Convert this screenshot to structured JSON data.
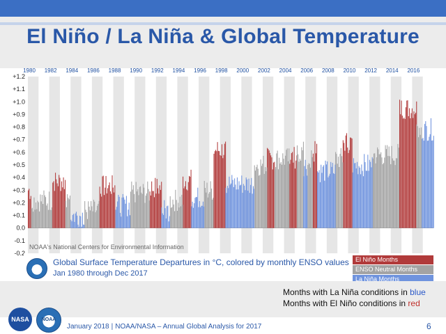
{
  "slide": {
    "title": "El Niño / La Niña & Global Temperature",
    "credit": "NOAA's National Centers for Environmental Information",
    "legend_line1": "Global Surface Temperature Departures in °C, colored by monthly ENSO values",
    "legend_line2": "Jan 1980 through Dec 2017",
    "legend_items": [
      "El Niño Months",
      "ENSO Neutral Months",
      "La Niña Months"
    ],
    "note_line1_prefix": "Months with La Niña conditions in ",
    "note_line1_word": "blue",
    "note_line2_prefix": "Months with El Niño conditions in ",
    "note_line2_word": "red",
    "footer_date": "January 2018",
    "footer_text": "NOAA/NASA – Annual Global Analysis for 2017",
    "page_number": "6",
    "nasa_label": "NASA",
    "noaa_label": "NOAA"
  },
  "chart_data": {
    "type": "bar",
    "title": "El Niño / La Niña & Global Temperature",
    "x_ticks": [
      "1980",
      "1982",
      "1984",
      "1986",
      "1988",
      "1990",
      "1992",
      "1994",
      "1996",
      "1998",
      "2000",
      "2002",
      "2004",
      "2006",
      "2008",
      "2010",
      "2012",
      "2014",
      "2016"
    ],
    "y_ticks": [
      "+1.2",
      "+1.1",
      "+1.0",
      "+0.9",
      "+0.8",
      "+0.7",
      "+0.6",
      "+0.5",
      "+0.4",
      "+0.3",
      "+0.2",
      "+0.1",
      "0.0",
      "-0.1",
      "-0.2"
    ],
    "ylim": [
      -0.2,
      1.2
    ],
    "xlim": [
      1980,
      2018
    ],
    "units": "°C",
    "colors": {
      "el_nino": "#b13a3a",
      "neutral": "#a3a3a3",
      "la_nina": "#6f93de"
    },
    "series": [
      {
        "name": "El Niño Months",
        "segments": [
          [
            1980.0,
            1980.3,
            0.3
          ],
          [
            1982.3,
            1983.5,
            0.37
          ],
          [
            1986.7,
            1988.2,
            0.33
          ],
          [
            1991.4,
            1992.5,
            0.32
          ],
          [
            1994.5,
            1995.3,
            0.38
          ],
          [
            1997.4,
            1998.5,
            0.62
          ],
          [
            2002.4,
            2003.1,
            0.55
          ],
          [
            2004.5,
            2005.2,
            0.56
          ],
          [
            2006.7,
            2007.1,
            0.6
          ],
          [
            2009.5,
            2010.4,
            0.68
          ],
          [
            2014.8,
            2016.4,
            0.95
          ]
        ]
      },
      {
        "name": "ENSO Neutral Months",
        "segments": [
          [
            1980.3,
            1982.3,
            0.22
          ],
          [
            1983.5,
            1984.0,
            0.25
          ],
          [
            1985.3,
            1986.7,
            0.14
          ],
          [
            1989.6,
            1991.4,
            0.28
          ],
          [
            1993.3,
            1994.5,
            0.22
          ],
          [
            1996.5,
            1997.4,
            0.3
          ],
          [
            2001.2,
            2002.4,
            0.5
          ],
          [
            2003.1,
            2004.5,
            0.55
          ],
          [
            2005.2,
            2005.8,
            0.6
          ],
          [
            2006.2,
            2006.7,
            0.54
          ],
          [
            2008.8,
            2009.5,
            0.55
          ],
          [
            2012.3,
            2014.8,
            0.58
          ],
          [
            2016.4,
            2016.9,
            0.8
          ]
        ]
      },
      {
        "name": "La Niña Months",
        "segments": [
          [
            1984.0,
            1985.3,
            0.1
          ],
          [
            1988.2,
            1989.6,
            0.18
          ],
          [
            1992.5,
            1993.3,
            0.14
          ],
          [
            1995.3,
            1996.5,
            0.24
          ],
          [
            1998.5,
            2001.2,
            0.35
          ],
          [
            2005.8,
            2006.2,
            0.5
          ],
          [
            2007.1,
            2008.8,
            0.45
          ],
          [
            2010.4,
            2012.3,
            0.5
          ],
          [
            2016.9,
            2018.0,
            0.78
          ]
        ]
      }
    ]
  }
}
